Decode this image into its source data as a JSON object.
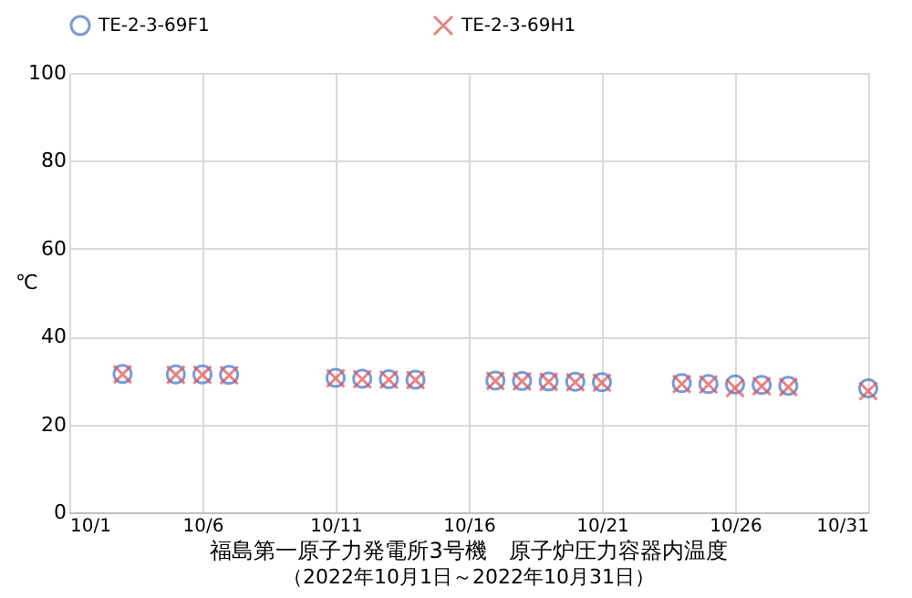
{
  "chart_data": {
    "type": "scatter",
    "title": "福島第一原子力発電所3号機　原子炉圧力容器内温度",
    "subtitle": "（2022年10月1日～2022年10月31日）",
    "ylabel": "℃",
    "x": [
      "2022-10-03",
      "2022-10-05",
      "2022-10-06",
      "2022-10-07",
      "2022-10-11",
      "2022-10-12",
      "2022-10-13",
      "2022-10-14",
      "2022-10-17",
      "2022-10-18",
      "2022-10-19",
      "2022-10-20",
      "2022-10-21",
      "2022-10-24",
      "2022-10-25",
      "2022-10-26",
      "2022-10-27",
      "2022-10-28",
      "2022-10-31"
    ],
    "series": [
      {
        "name": "TE-2-3-69F1",
        "color": "#4472c4",
        "marker": "circle",
        "values": [
          31.5,
          31.4,
          31.4,
          31.3,
          30.6,
          30.4,
          30.3,
          30.2,
          30.0,
          29.9,
          29.8,
          29.7,
          29.6,
          29.4,
          29.2,
          29.1,
          29.0,
          28.8,
          28.2
        ]
      },
      {
        "name": "TE-2-3-69H1",
        "color": "#e05050",
        "marker": "cross",
        "values": [
          31.4,
          31.3,
          31.3,
          31.2,
          30.5,
          30.3,
          30.2,
          30.1,
          29.9,
          29.8,
          29.7,
          29.6,
          29.5,
          29.2,
          29.1,
          28.3,
          28.7,
          28.5,
          27.6
        ]
      }
    ],
    "xlim": [
      "2022-10-01",
      "2022-10-31"
    ],
    "xticks": [
      {
        "value": "2022-10-01",
        "label": "10/1"
      },
      {
        "value": "2022-10-06",
        "label": "10/6"
      },
      {
        "value": "2022-10-11",
        "label": "10/11"
      },
      {
        "value": "2022-10-16",
        "label": "10/16"
      },
      {
        "value": "2022-10-21",
        "label": "10/21"
      },
      {
        "value": "2022-10-26",
        "label": "10/26"
      },
      {
        "value": "2022-10-31",
        "label": "10/31"
      }
    ],
    "ylim": [
      0,
      100
    ],
    "yticks": [
      0,
      20,
      40,
      60,
      80,
      100
    ],
    "grid": true,
    "legend": "top"
  }
}
